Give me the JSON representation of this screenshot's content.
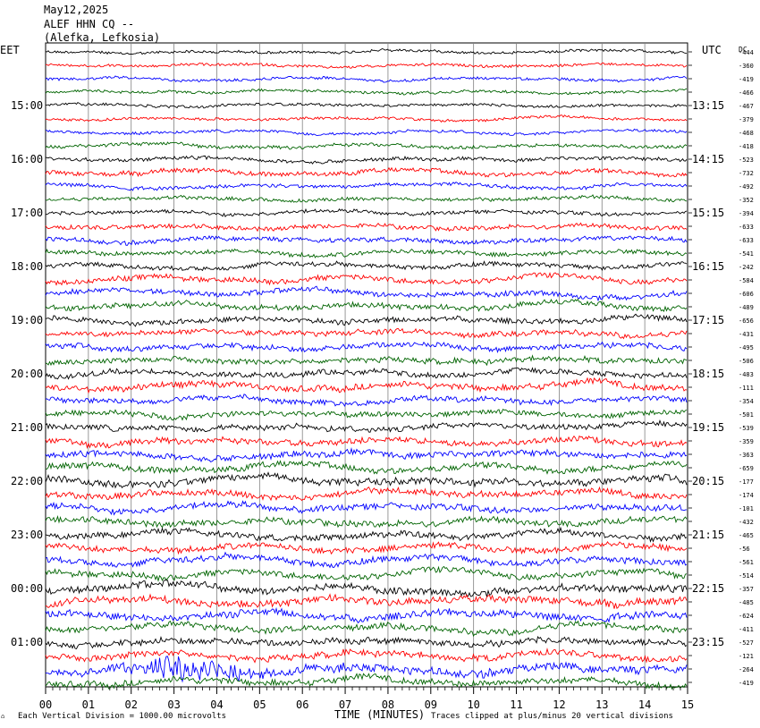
{
  "header": {
    "date": "May12,2025",
    "station": "ALEF HHN CQ --",
    "location": "(Alefka, Lefkosia)"
  },
  "labels": {
    "left_tz": "EET",
    "right_tz": "UTC",
    "dc_label": "DC"
  },
  "footer": {
    "scale_note": "Each Vertical Division = 1000.00 microvolts",
    "xlabel": "TIME (MINUTES)",
    "clip_note": "Traces clipped at plus/minus 20 vertical divisions"
  },
  "colors": {
    "trace_cycle": [
      "#000000",
      "#ff0000",
      "#0000ff",
      "#006400"
    ],
    "grid": "#808080"
  },
  "chart_data": {
    "type": "line",
    "xlabel": "TIME (MINUTES)",
    "xlim": [
      0,
      15
    ],
    "x_ticks": [
      "00",
      "01",
      "02",
      "03",
      "04",
      "05",
      "06",
      "07",
      "08",
      "09",
      "10",
      "11",
      "12",
      "13",
      "14",
      "15"
    ],
    "y_left_ticks": [
      {
        "row": 4,
        "label": "15:00"
      },
      {
        "row": 8,
        "label": "16:00"
      },
      {
        "row": 12,
        "label": "17:00"
      },
      {
        "row": 16,
        "label": "18:00"
      },
      {
        "row": 20,
        "label": "19:00"
      },
      {
        "row": 24,
        "label": "20:00"
      },
      {
        "row": 28,
        "label": "21:00"
      },
      {
        "row": 32,
        "label": "22:00"
      },
      {
        "row": 36,
        "label": "23:00"
      },
      {
        "row": 40,
        "label": "00:00"
      },
      {
        "row": 44,
        "label": "01:00"
      }
    ],
    "y_right_ticks": [
      {
        "row": 4,
        "label": "13:15"
      },
      {
        "row": 8,
        "label": "14:15"
      },
      {
        "row": 12,
        "label": "15:15"
      },
      {
        "row": 16,
        "label": "16:15"
      },
      {
        "row": 20,
        "label": "17:15"
      },
      {
        "row": 24,
        "label": "18:15"
      },
      {
        "row": 28,
        "label": "19:15"
      },
      {
        "row": 32,
        "label": "20:15"
      },
      {
        "row": 36,
        "label": "21:15"
      },
      {
        "row": 40,
        "label": "22:15"
      },
      {
        "row": 44,
        "label": "23:15"
      }
    ],
    "dc_offsets": [
      "444",
      "360",
      "419",
      "466",
      "467",
      "379",
      "468",
      "418",
      "523",
      "732",
      "492",
      "352",
      "394",
      "633",
      "633",
      "541",
      "242",
      "584",
      "606",
      "489",
      "656",
      "431",
      "495",
      "506",
      "483",
      "111",
      "354",
      "501",
      "539",
      "359",
      "363",
      "659",
      "177",
      "174",
      "101",
      "432",
      "465",
      "56",
      "561",
      "514",
      "357",
      "485",
      "624",
      "411",
      "527",
      "121",
      "264",
      "419"
    ],
    "trace_amplitude": [
      3,
      3,
      3,
      3,
      3,
      3,
      3,
      4,
      4,
      5,
      4,
      4,
      4,
      5,
      5,
      5,
      5,
      6,
      6,
      6,
      6,
      6,
      6,
      6,
      6,
      7,
      6,
      6,
      6,
      7,
      7,
      7,
      8,
      7,
      7,
      7,
      7,
      7,
      7,
      7,
      8,
      8,
      8,
      7,
      7,
      7,
      9,
      7
    ],
    "events": [
      {
        "row": 46,
        "minute_start": 1.6,
        "minute_end": 7.2,
        "peak_minute": 2.8,
        "note": "seismic signal"
      }
    ]
  }
}
